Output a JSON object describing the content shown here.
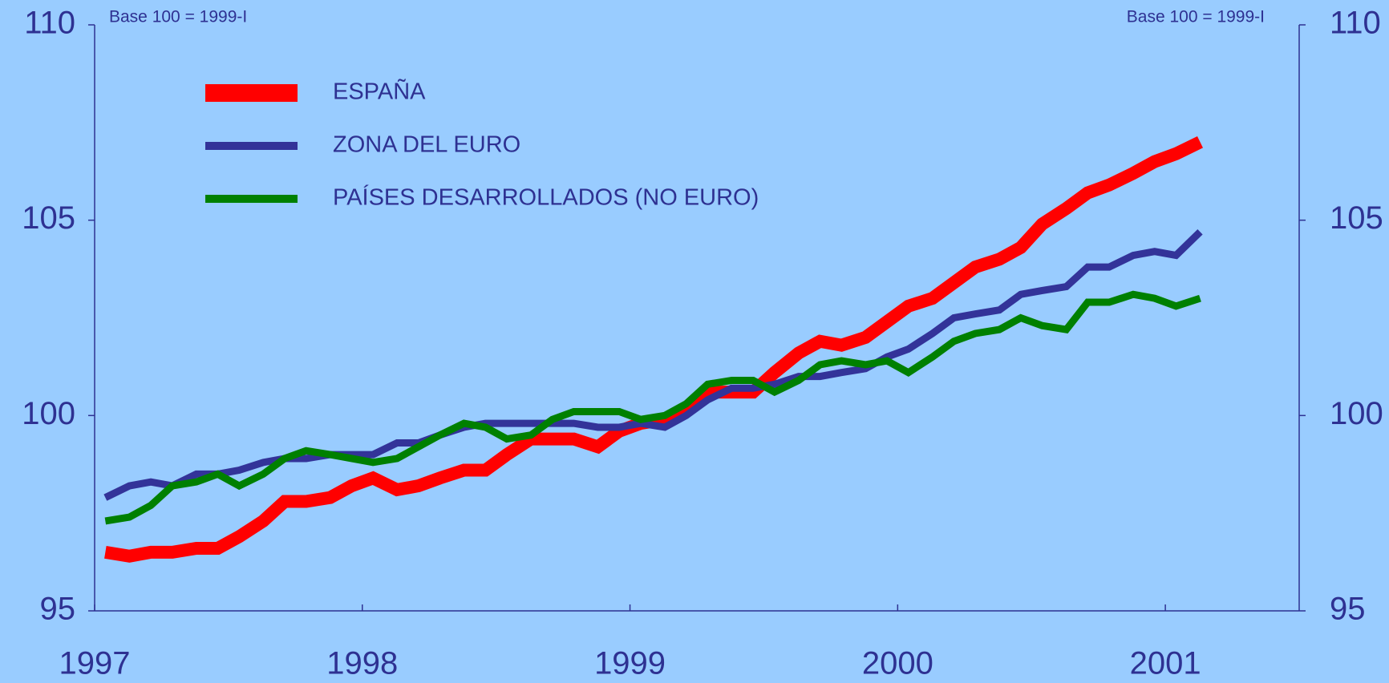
{
  "chart_data": {
    "type": "line",
    "annotations": [
      "Base 100 = 1999-I",
      "Base 100 = 1999-I"
    ],
    "x": [
      1997.04,
      1997.13,
      1997.21,
      1997.29,
      1997.38,
      1997.46,
      1997.54,
      1997.63,
      1997.71,
      1997.79,
      1997.88,
      1997.96,
      1998.04,
      1998.13,
      1998.21,
      1998.29,
      1998.38,
      1998.46,
      1998.54,
      1998.63,
      1998.71,
      1998.79,
      1998.88,
      1998.96,
      1999.04,
      1999.13,
      1999.21,
      1999.29,
      1999.38,
      1999.46,
      1999.54,
      1999.63,
      1999.71,
      1999.79,
      1999.88,
      1999.96,
      2000.04,
      2000.13,
      2000.21,
      2000.29,
      2000.38,
      2000.46,
      2000.54,
      2000.63,
      2000.71,
      2000.79,
      2000.88,
      2000.96,
      2001.04,
      2001.13
    ],
    "series": [
      {
        "name": "ESPAÑA",
        "color": "#ff0000",
        "values": [
          96.5,
          96.4,
          96.5,
          96.5,
          96.6,
          96.6,
          96.9,
          97.3,
          97.8,
          97.8,
          97.9,
          98.2,
          98.4,
          98.1,
          98.2,
          98.4,
          98.6,
          98.6,
          99.0,
          99.4,
          99.4,
          99.4,
          99.2,
          99.6,
          99.8,
          99.9,
          100.2,
          100.6,
          100.6,
          100.6,
          101.1,
          101.6,
          101.9,
          101.8,
          102.0,
          102.4,
          102.8,
          103.0,
          103.4,
          103.8,
          104.0,
          104.3,
          104.9,
          105.3,
          105.7,
          105.9,
          106.2,
          106.5,
          106.7,
          107.0
        ]
      },
      {
        "name": "ZONA DEL EURO",
        "color": "#333399",
        "values": [
          97.9,
          98.2,
          98.3,
          98.2,
          98.5,
          98.5,
          98.6,
          98.8,
          98.9,
          98.9,
          99.0,
          99.0,
          99.0,
          99.3,
          99.3,
          99.5,
          99.7,
          99.8,
          99.8,
          99.8,
          99.8,
          99.8,
          99.7,
          99.7,
          99.8,
          99.7,
          100.0,
          100.4,
          100.7,
          100.7,
          100.8,
          101.0,
          101.0,
          101.1,
          101.2,
          101.5,
          101.7,
          102.1,
          102.5,
          102.6,
          102.7,
          103.1,
          103.2,
          103.3,
          103.8,
          103.8,
          104.1,
          104.2,
          104.1,
          104.7
        ]
      },
      {
        "name": "PAÍSES DESARROLLADOS (NO EURO)",
        "color": "#008000",
        "values": [
          97.3,
          97.4,
          97.7,
          98.2,
          98.3,
          98.5,
          98.2,
          98.5,
          98.9,
          99.1,
          99.0,
          98.9,
          98.8,
          98.9,
          99.2,
          99.5,
          99.8,
          99.7,
          99.4,
          99.5,
          99.9,
          100.1,
          100.1,
          100.1,
          99.9,
          100.0,
          100.3,
          100.8,
          100.9,
          100.9,
          100.6,
          100.9,
          101.3,
          101.4,
          101.3,
          101.4,
          101.1,
          101.5,
          101.9,
          102.1,
          102.2,
          102.5,
          102.3,
          102.2,
          102.9,
          102.9,
          103.1,
          103.0,
          102.8,
          103.0
        ]
      }
    ],
    "xlim": [
      1997,
      2001.5
    ],
    "xticks": [
      1997,
      1998,
      1999,
      2000,
      2001
    ],
    "ylim": [
      95,
      110
    ],
    "yticks": [
      95,
      100,
      105,
      110
    ],
    "y2lim": [
      95,
      110
    ],
    "y2ticks": [
      95,
      100,
      105,
      110
    ]
  }
}
